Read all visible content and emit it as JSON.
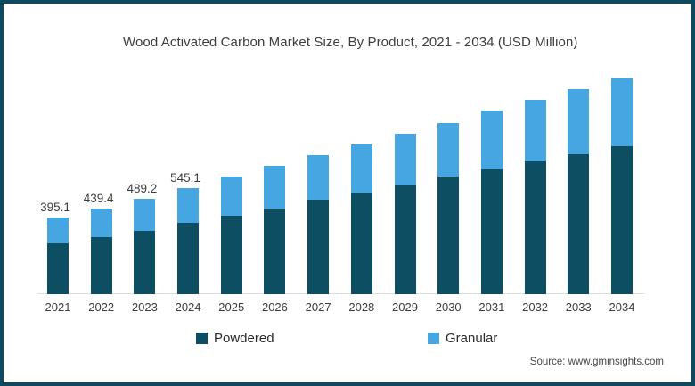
{
  "title": "Wood Activated Carbon Market Size, By Product, 2021 - 2034 (USD Million)",
  "source": "Source: www.gminsights.com",
  "legend": {
    "items": [
      {
        "label": "Powdered",
        "color": "#0d4e63"
      },
      {
        "label": "Granular",
        "color": "#45a6e1"
      }
    ]
  },
  "colors": {
    "frame_border": "#0d4a5f",
    "axis_line": "#dcdcdc",
    "powdered": "#0d4e63",
    "granular": "#45a6e1"
  },
  "chart_data": {
    "type": "bar",
    "stacked": true,
    "title": "Wood Activated Carbon Market Size, By Product, 2021 - 2034 (USD Million)",
    "units": "USD Million",
    "xlabel": "",
    "ylabel": "",
    "grid": false,
    "legend_position": "bottom",
    "categories": [
      "2021",
      "2022",
      "2023",
      "2024",
      "2025",
      "2026",
      "2027",
      "2028",
      "2029",
      "2030",
      "2031",
      "2032",
      "2033",
      "2034"
    ],
    "series": [
      {
        "name": "Powdered",
        "color": "#0d4e63",
        "values": [
          263,
          296,
          327,
          368,
          403,
          442,
          488,
          521,
          561,
          607,
          645,
          682,
          720,
          763
        ]
      },
      {
        "name": "Granular",
        "color": "#45a6e1",
        "values": [
          132.1,
          143.4,
          162.2,
          177.1,
          202,
          217,
          229,
          249,
          266,
          275,
          302,
          318,
          337,
          349
        ]
      }
    ],
    "totals": [
      395.1,
      439.4,
      489.2,
      545.1,
      605,
      659,
      717,
      770,
      827,
      882,
      947,
      1000,
      1057,
      1112
    ],
    "bar_labels": [
      "395.1",
      "439.4",
      "489.2",
      "545.1",
      "",
      "",
      "",
      "",
      "",
      "",
      "",
      "",
      "",
      ""
    ]
  }
}
